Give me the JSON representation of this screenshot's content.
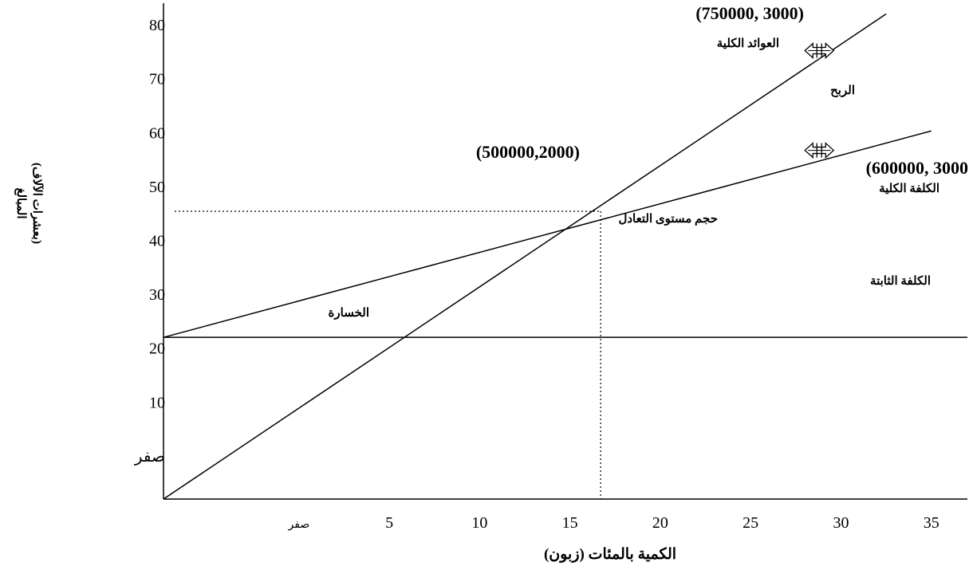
{
  "chart_data": {
    "type": "line",
    "title": "",
    "xlabel": "الكمية بالمئات (زبون)",
    "ylabel_line1": "المبالغ",
    "ylabel_line2": "(بعشرات الآلاف)",
    "x_ticks": [
      {
        "value": 0,
        "label": "صفر"
      },
      {
        "value": 5,
        "label": "5"
      },
      {
        "value": 10,
        "label": "10"
      },
      {
        "value": 15,
        "label": "15"
      },
      {
        "value": 20,
        "label": "20"
      },
      {
        "value": 25,
        "label": "25"
      },
      {
        "value": 30,
        "label": "30"
      },
      {
        "value": 35,
        "label": "35"
      }
    ],
    "y_ticks": [
      {
        "value": 0,
        "label": "صفر"
      },
      {
        "value": 10,
        "label": "10"
      },
      {
        "value": 20,
        "label": "20"
      },
      {
        "value": 30,
        "label": "30"
      },
      {
        "value": 40,
        "label": "40"
      },
      {
        "value": 50,
        "label": "50"
      },
      {
        "value": 60,
        "label": "60"
      },
      {
        "value": 70,
        "label": "70"
      },
      {
        "value": 80,
        "label": "80"
      }
    ],
    "xlim": [
      -7.5,
      37
    ],
    "ylim": [
      -8,
      84
    ],
    "series": [
      {
        "name": "العوائد الكلية",
        "x": [
          -7.5,
          32.5
        ],
        "y": [
          -8,
          82
        ]
      },
      {
        "name": "الكلفة الكلية",
        "x": [
          -7.5,
          35
        ],
        "y": [
          22,
          60.3
        ]
      },
      {
        "name": "الكلفة الثابتة",
        "x": [
          -7.5,
          37
        ],
        "y": [
          22,
          22
        ]
      }
    ],
    "break_even": {
      "x": 16.7,
      "y": 45.4,
      "label": "حجم مستوى التعادل"
    },
    "markers": [
      {
        "x": 28.8,
        "y": 75.2
      },
      {
        "x": 28.8,
        "y": 56.7
      }
    ],
    "annotations": {
      "revenue_point": "(750000, 3000)",
      "cost_point": "(600000, 3000",
      "breakeven_point": "(500000,2000)",
      "total_revenue": "العوائد الكلية",
      "total_cost": "الكلفة الكلية",
      "fixed_cost": "الكلفة الثابتة",
      "profit": "الربح",
      "loss": "الخسارة"
    }
  }
}
